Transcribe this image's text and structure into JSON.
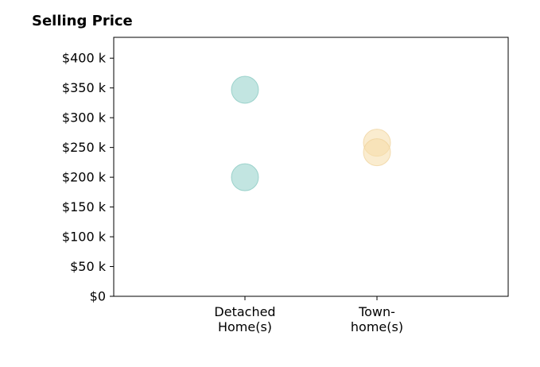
{
  "chart_data": {
    "type": "scatter",
    "title": "Selling Price",
    "xlabel": "",
    "ylabel": "",
    "categories": [
      {
        "lines": [
          "Detached",
          "Home(s)"
        ]
      },
      {
        "lines": [
          "Town-",
          "home(s)"
        ]
      }
    ],
    "y_ticks": [
      {
        "value": 0,
        "label": "$0"
      },
      {
        "value": 50,
        "label": "$50 k"
      },
      {
        "value": 100,
        "label": "$100 k"
      },
      {
        "value": 150,
        "label": "$150 k"
      },
      {
        "value": 200,
        "label": "$200 k"
      },
      {
        "value": 250,
        "label": "$250 k"
      },
      {
        "value": 300,
        "label": "$300 k"
      },
      {
        "value": 350,
        "label": "$350 k"
      },
      {
        "value": 400,
        "label": "$400 k"
      }
    ],
    "ylim": [
      0,
      435
    ],
    "grid": false,
    "legend": "none",
    "series": [
      {
        "category_index": 0,
        "color": "#8fcfc8",
        "stroke": "#7fc4bc",
        "values": [
          347,
          200
        ]
      },
      {
        "category_index": 1,
        "color": "#f5dca8",
        "stroke": "#eed097",
        "values": [
          258,
          242
        ]
      }
    ]
  }
}
